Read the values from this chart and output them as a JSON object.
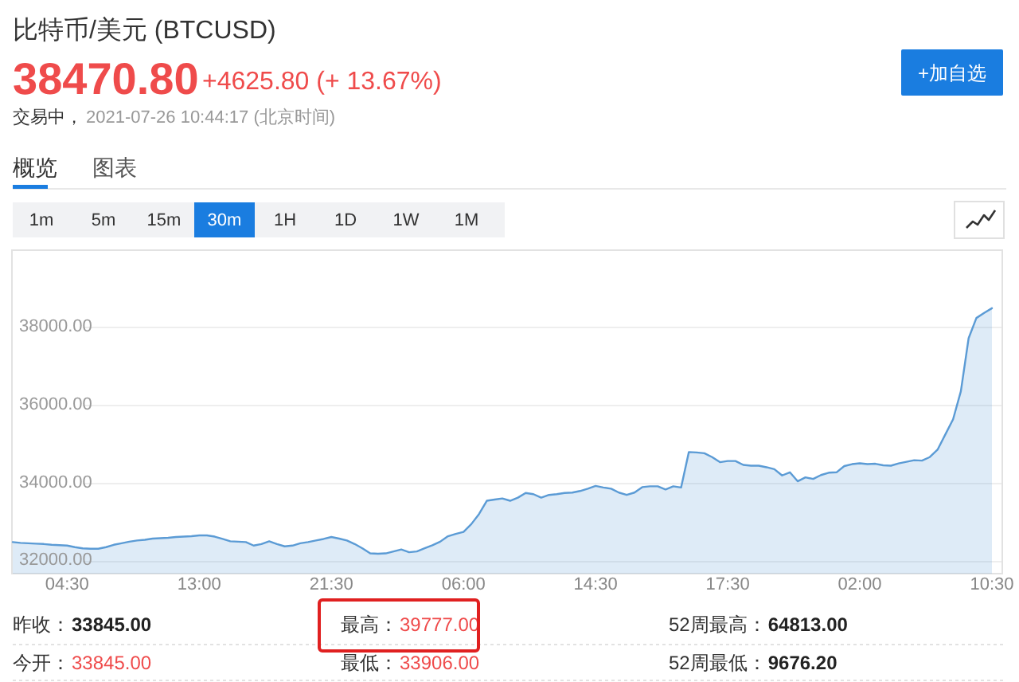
{
  "chart_data": {
    "type": "area",
    "title": "比特币/美元 (BTCUSD)",
    "categories": [
      null,
      null,
      null,
      null,
      null,
      null,
      null,
      "04:30",
      null,
      null,
      null,
      null,
      null,
      null,
      null,
      null,
      null,
      null,
      null,
      null,
      null,
      null,
      null,
      null,
      "13:00",
      null,
      null,
      null,
      null,
      null,
      null,
      null,
      null,
      null,
      null,
      null,
      null,
      null,
      null,
      null,
      null,
      "21:30",
      null,
      null,
      null,
      null,
      null,
      null,
      null,
      null,
      null,
      null,
      null,
      null,
      null,
      null,
      null,
      null,
      "06:00",
      null,
      null,
      null,
      null,
      null,
      null,
      null,
      null,
      null,
      null,
      null,
      null,
      null,
      null,
      null,
      null,
      "14:30",
      null,
      null,
      null,
      null,
      null,
      null,
      null,
      null,
      null,
      null,
      null,
      null,
      null,
      null,
      null,
      null,
      "17:30",
      null,
      null,
      null,
      null,
      null,
      null,
      null,
      null,
      null,
      null,
      null,
      null,
      null,
      null,
      null,
      null,
      "02:00",
      null,
      null,
      null,
      null,
      null,
      null,
      null,
      null,
      null,
      null,
      null,
      null,
      null,
      null,
      null,
      null,
      "10:30"
    ],
    "values": [
      32470,
      32450,
      32440,
      32430,
      32420,
      32400,
      32390,
      32380,
      32340,
      32310,
      32300,
      32300,
      32340,
      32400,
      32440,
      32480,
      32510,
      32530,
      32560,
      32570,
      32580,
      32600,
      32610,
      32620,
      32640,
      32640,
      32610,
      32550,
      32490,
      32480,
      32470,
      32380,
      32420,
      32490,
      32420,
      32360,
      32380,
      32440,
      32470,
      32510,
      32550,
      32600,
      32560,
      32510,
      32420,
      32310,
      32180,
      32170,
      32180,
      32230,
      32280,
      32210,
      32230,
      32310,
      32390,
      32480,
      32620,
      32680,
      32730,
      32930,
      33190,
      33530,
      33560,
      33590,
      33530,
      33610,
      33730,
      33700,
      33610,
      33680,
      33700,
      33730,
      33740,
      33780,
      33840,
      33910,
      33870,
      33840,
      33740,
      33680,
      33740,
      33880,
      33900,
      33900,
      33820,
      33900,
      33870,
      34780,
      34770,
      34750,
      34650,
      34520,
      34550,
      34550,
      34450,
      34430,
      34430,
      34390,
      34340,
      34180,
      34260,
      34030,
      34130,
      34090,
      34190,
      34250,
      34260,
      34420,
      34470,
      34490,
      34470,
      34480,
      34440,
      34430,
      34490,
      34530,
      34570,
      34560,
      34650,
      34840,
      35230,
      35620,
      36340,
      37700,
      38220,
      38350,
      38470
    ],
    "color": "#5b9bd5",
    "ylim": [
      31660,
      39960
    ],
    "yticks": [
      {
        "value": 32000,
        "label": "32000.00"
      },
      {
        "value": 34000,
        "label": "34000.00"
      },
      {
        "value": 36000,
        "label": "36000.00"
      },
      {
        "value": 38000,
        "label": "38000.00"
      }
    ],
    "grid": "y",
    "annotations": [
      "38470.80",
      "+4625.80 (+ 13.67%)",
      "交易中，",
      "2021-07-26 10:44:17 (北京时间)",
      "+加自选",
      "概览",
      "图表",
      "1m",
      "5m",
      "15m",
      "30m",
      "1H",
      "1D",
      "1W",
      "1M",
      "昨收：",
      "33845.00",
      "最高：",
      "39777.00",
      "52周最高：",
      "64813.00",
      "今开：",
      "33845.00",
      "最低：",
      "33906.00",
      "52周最低：",
      "9676.20"
    ]
  }
}
